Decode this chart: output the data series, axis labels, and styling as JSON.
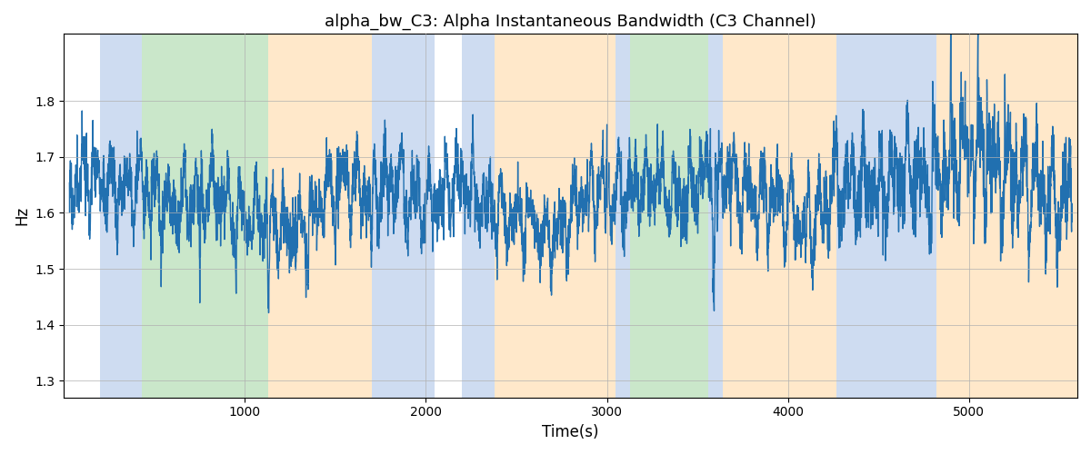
{
  "title": "alpha_bw_C3: Alpha Instantaneous Bandwidth (C3 Channel)",
  "xlabel": "Time(s)",
  "ylabel": "Hz",
  "xlim": [
    0,
    5600
  ],
  "ylim": [
    1.27,
    1.92
  ],
  "yticks": [
    1.3,
    1.4,
    1.5,
    1.6,
    1.7,
    1.8
  ],
  "xticks": [
    1000,
    2000,
    3000,
    4000,
    5000
  ],
  "line_color": "#2170b0",
  "line_width": 1.0,
  "grid_color": "#b0b0b0",
  "regions": [
    {
      "start": 200,
      "end": 430,
      "color": "#aec6e8",
      "alpha": 0.6
    },
    {
      "start": 430,
      "end": 1130,
      "color": "#a8d8a8",
      "alpha": 0.6
    },
    {
      "start": 1130,
      "end": 1700,
      "color": "#ffd9a8",
      "alpha": 0.6
    },
    {
      "start": 1700,
      "end": 2050,
      "color": "#aec6e8",
      "alpha": 0.6
    },
    {
      "start": 2200,
      "end": 2380,
      "color": "#aec6e8",
      "alpha": 0.6
    },
    {
      "start": 2380,
      "end": 3050,
      "color": "#ffd9a8",
      "alpha": 0.6
    },
    {
      "start": 3050,
      "end": 3130,
      "color": "#aec6e8",
      "alpha": 0.6
    },
    {
      "start": 3130,
      "end": 3560,
      "color": "#a8d8a8",
      "alpha": 0.6
    },
    {
      "start": 3560,
      "end": 3640,
      "color": "#aec6e8",
      "alpha": 0.6
    },
    {
      "start": 3640,
      "end": 4270,
      "color": "#ffd9a8",
      "alpha": 0.6
    },
    {
      "start": 4270,
      "end": 4820,
      "color": "#aec6e8",
      "alpha": 0.6
    },
    {
      "start": 4820,
      "end": 5600,
      "color": "#ffd9a8",
      "alpha": 0.6
    }
  ],
  "seed": 17,
  "n_points": 5400,
  "t_start": 30,
  "t_end": 5570
}
